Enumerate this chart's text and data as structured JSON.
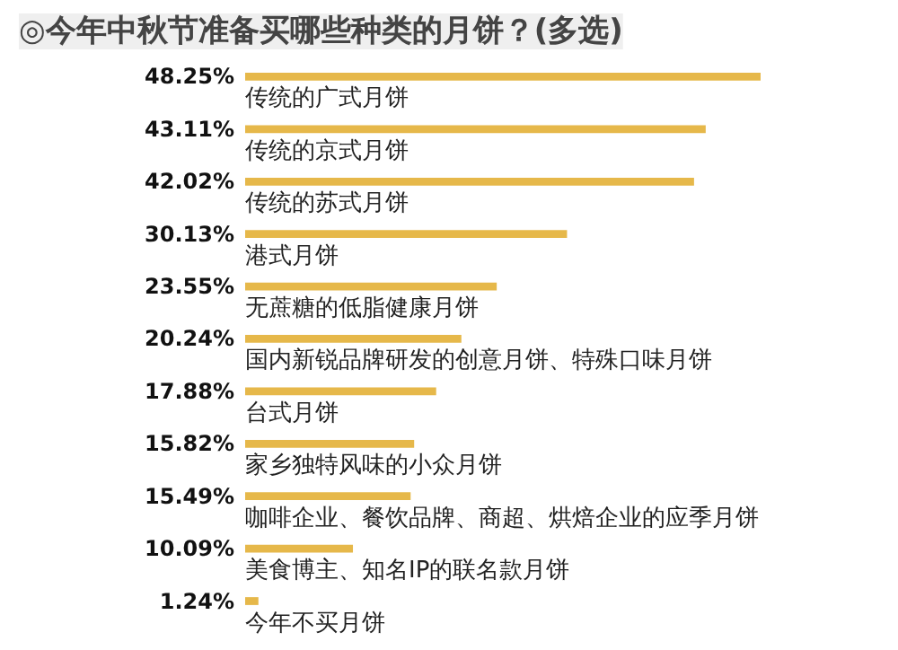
{
  "chart_data": {
    "type": "bar",
    "orientation": "horizontal",
    "title": "◎今年中秋节准备买哪些种类的月饼？(多选)",
    "categories": [
      "传统的广式月饼",
      "传统的京式月饼",
      "传统的苏式月饼",
      "港式月饼",
      "无蔗糖的低脂健康月饼",
      "国内新锐品牌研发的创意月饼、特殊口味月饼",
      "台式月饼",
      "家乡独特风味的小众月饼",
      "咖啡企业、餐饮品牌、商超、烘焙企业的应季月饼",
      "美食博主、知名IP的联名款月饼",
      "今年不买月饼"
    ],
    "values": [
      48.25,
      43.11,
      42.02,
      30.13,
      23.55,
      20.24,
      17.88,
      15.82,
      15.49,
      10.09,
      1.24
    ],
    "value_labels": [
      "48.25%",
      "43.11%",
      "42.02%",
      "30.13%",
      "23.55%",
      "20.24%",
      "17.88%",
      "15.82%",
      "15.49%",
      "10.09%",
      "1.24%"
    ],
    "color": "#e6b84a",
    "grid": false
  }
}
